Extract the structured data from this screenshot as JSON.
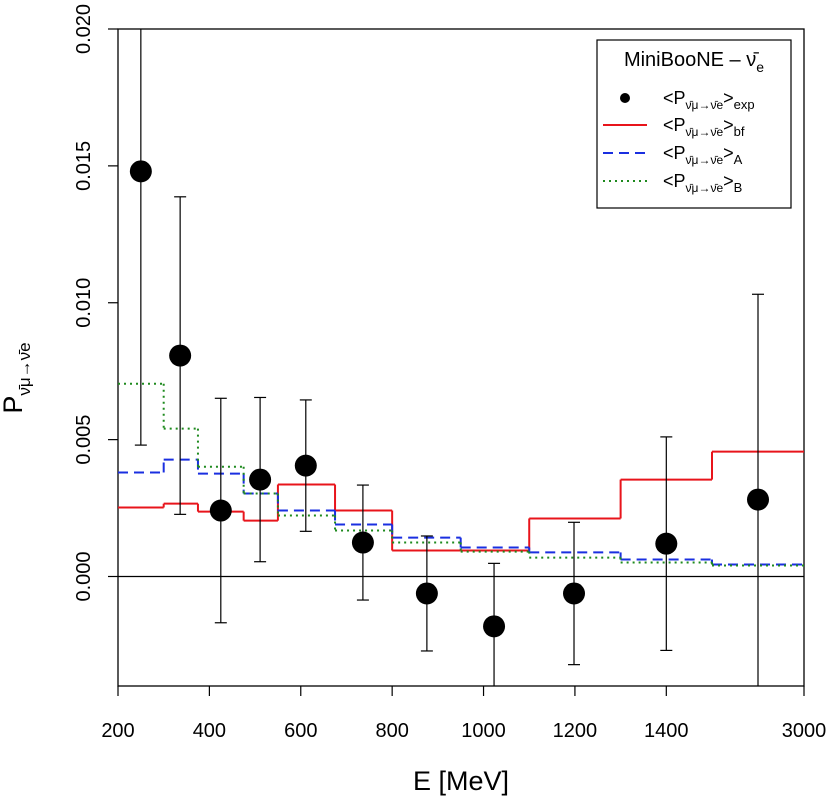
{
  "chart_data": {
    "type": "scatter",
    "title": "MiniBooNE – ν̄",
    "title_sub": "e",
    "y_label": "P",
    "y_label_sub": "ν̄μ→ν̄e",
    "x_label": "E    [MeV]",
    "xlim": [
      200,
      3000
    ],
    "xticks": [
      200,
      400,
      600,
      800,
      1000,
      1200,
      1400,
      3000
    ],
    "ylim": [
      -0.004,
      0.02
    ],
    "yticks": [
      {
        "value": 0,
        "label": "0.000"
      },
      {
        "value": 0.005,
        "label": "0.005"
      },
      {
        "value": 0.01,
        "label": "0.010"
      },
      {
        "value": 0.015,
        "label": "0.015"
      },
      {
        "value": 0.02,
        "label": "0.020"
      }
    ],
    "legend_open": "<P",
    "legend_sub": "ν̄μ→ν̄e",
    "legend_close": ">",
    "name": "exp",
    "color": "#000000",
    "x": [
      250,
      336,
      425,
      511,
      611,
      736,
      876,
      1023,
      1198,
      1400,
      2250
    ],
    "values": [
      0.0148,
      0.00807,
      0.00241,
      0.00354,
      0.00405,
      0.00124,
      -0.00062,
      -0.00182,
      -0.00062,
      0.0012,
      0.00281
    ],
    "errors": [
      0.01,
      0.0058,
      0.0041,
      0.003,
      0.0024,
      0.0021,
      0.0021,
      0.0023,
      0.0026,
      0.0039,
      0.0075
    ],
    "bins": [
      200,
      300,
      375,
      475,
      550,
      675,
      800,
      950,
      1100,
      1300,
      1500,
      3000
    ],
    "series": [
      {
        "name": "bf",
        "color": "#e8141b",
        "dash": "solid",
        "values": [
          0.00252,
          0.00266,
          0.00237,
          0.00204,
          0.00336,
          0.00241,
          0.00095,
          0.00095,
          0.00212,
          0.00354,
          0.00456
        ]
      },
      {
        "name": "A",
        "color": "#1a2fe0",
        "dash": "dashed",
        "values": [
          0.0038,
          0.00427,
          0.00376,
          0.00303,
          0.00241,
          0.0019,
          0.00142,
          0.00106,
          0.00088,
          0.00062,
          0.00044
        ]
      },
      {
        "name": "B",
        "color": "#1e8a1e",
        "dash": "dotted",
        "values": [
          0.00704,
          0.0054,
          0.00401,
          0.00303,
          0.00223,
          0.00168,
          0.00124,
          0.00091,
          0.00069,
          0.00051,
          0.0004
        ]
      }
    ]
  }
}
